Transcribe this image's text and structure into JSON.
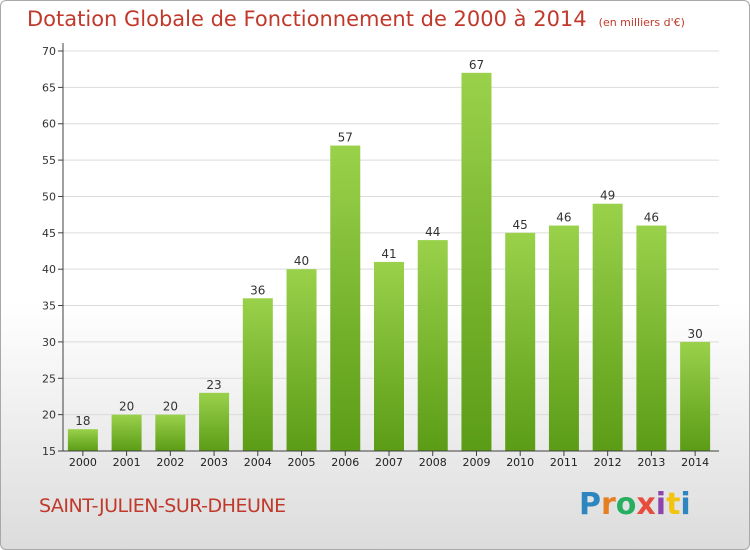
{
  "title": "Dotation Globale de Fonctionnement de 2000 à 2014",
  "subtitle": "(en milliers d'€)",
  "place": "SAINT-JULIEN-SUR-DHEUNE",
  "logo": {
    "text": "Proxiti",
    "letters": [
      {
        "ch": "P",
        "color": "#2e86c1"
      },
      {
        "ch": "r",
        "color": "#e67e22"
      },
      {
        "ch": "o",
        "color": "#27ae60"
      },
      {
        "ch": "x",
        "color": "#e74c3c"
      },
      {
        "ch": "i",
        "color": "#8e44ad"
      },
      {
        "ch": "t",
        "color": "#f1c40f"
      },
      {
        "ch": "i",
        "color": "#2e86c1"
      }
    ]
  },
  "colors": {
    "bar_top": "#9ad14b",
    "bar_bottom": "#5b9c16",
    "title": "#c0392b",
    "grid": "#dcdcdc",
    "axis": "#404040"
  },
  "chart_data": {
    "type": "bar",
    "title": "Dotation Globale de Fonctionnement de 2000 à 2014",
    "subtitle": "(en milliers d'€)",
    "categories": [
      "2000",
      "2001",
      "2002",
      "2003",
      "2004",
      "2005",
      "2006",
      "2007",
      "2008",
      "2009",
      "2010",
      "2011",
      "2012",
      "2013",
      "2014"
    ],
    "values": [
      18,
      20,
      20,
      23,
      36,
      40,
      57,
      41,
      44,
      67,
      45,
      46,
      49,
      46,
      30
    ],
    "ylim": [
      15,
      70
    ],
    "yticks": [
      15,
      20,
      25,
      30,
      35,
      40,
      45,
      50,
      55,
      60,
      65,
      70
    ],
    "grid": true,
    "data_labels": true
  }
}
